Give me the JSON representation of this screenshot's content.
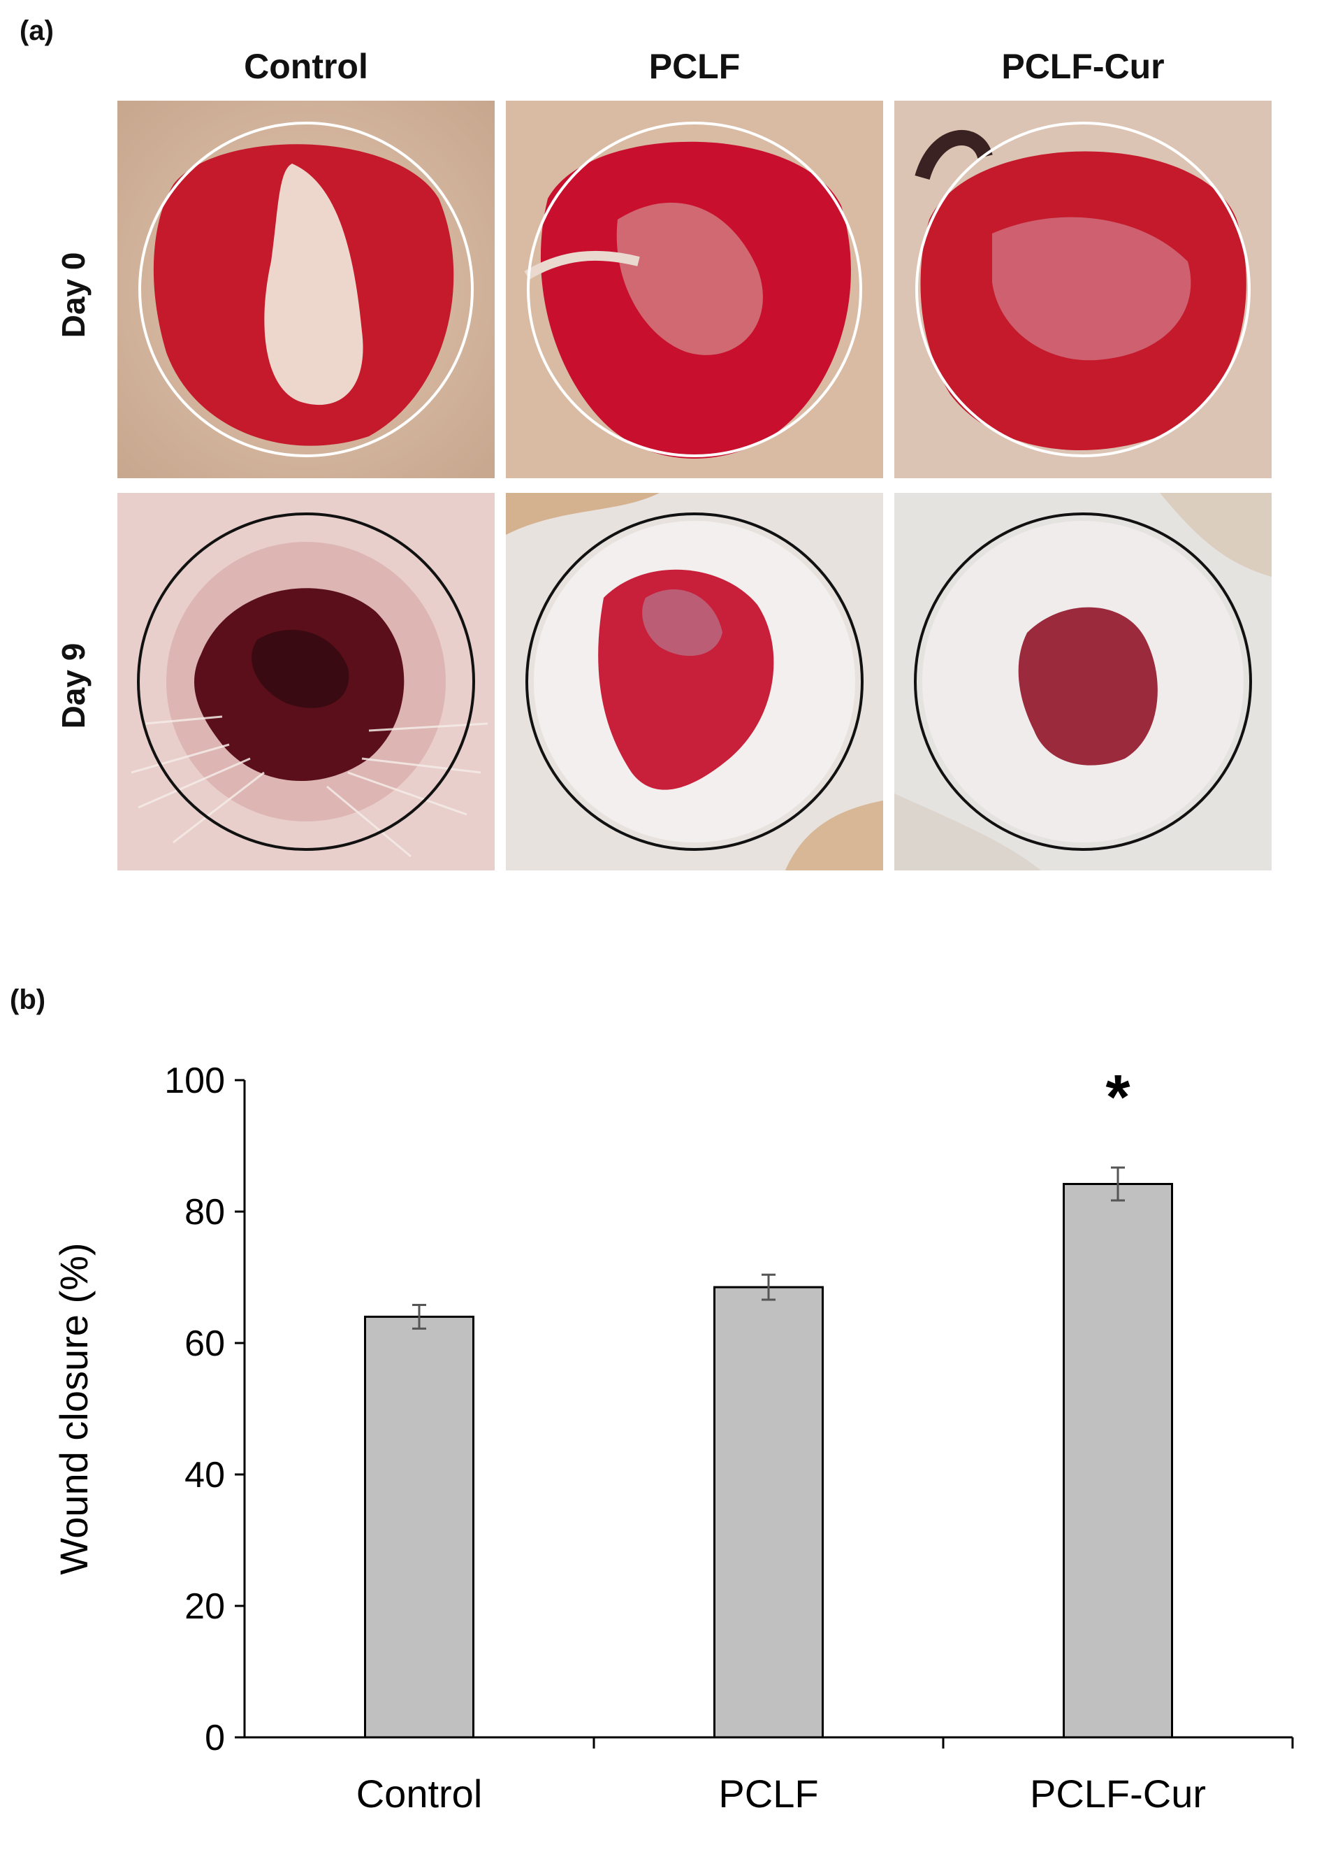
{
  "figure": {
    "panel_a_label": "(a)",
    "panel_b_label": "(b)",
    "columns": [
      "Control",
      "PCLF",
      "PCLF-Cur"
    ],
    "rows": [
      "Day 0",
      "Day 9"
    ]
  },
  "colors": {
    "bar_fill": "#c0c0c0",
    "bar_stroke": "#000000",
    "wound_red": "#c8102e",
    "skin": "#d9b9a0",
    "day0_circle": "#ffffff",
    "day9_circle": "#111111"
  },
  "chart_data": {
    "type": "bar",
    "categories": [
      "Control",
      "PCLF",
      "PCLF-Cur"
    ],
    "values": [
      64,
      68.5,
      84.2
    ],
    "errors": [
      1.8,
      1.9,
      2.5
    ],
    "annotations": [
      {
        "category": "PCLF-Cur",
        "text": "*"
      }
    ],
    "ylabel": "Wound closure (%)",
    "xlabel": "",
    "ylim": [
      0,
      100
    ],
    "yticks": [
      0,
      20,
      40,
      60,
      80,
      100
    ],
    "grid": false
  }
}
